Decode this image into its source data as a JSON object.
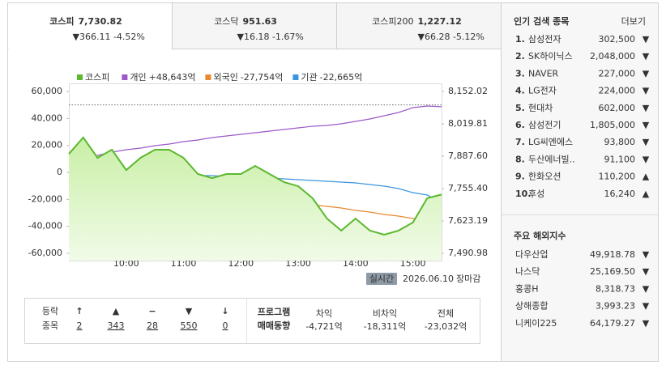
{
  "tabs": [
    {
      "name": "코스피",
      "value": "7,730.82",
      "change": "▼366.11 -4.52%"
    },
    {
      "name": "코스닥",
      "value": "951.63",
      "change": "▼16.18 -1.67%"
    },
    {
      "name": "코스피200",
      "value": "1,227.12",
      "change": "▼66.28 -5.12%"
    }
  ],
  "chart_data": {
    "type": "line",
    "x": [
      9,
      9.25,
      9.5,
      9.75,
      10,
      10.25,
      10.5,
      10.75,
      11,
      11.25,
      11.5,
      11.75,
      12,
      12.25,
      12.5,
      12.75,
      13,
      13.25,
      13.5,
      13.75,
      14,
      14.25,
      14.5,
      14.75,
      15,
      15.25,
      15.5
    ],
    "xlim": [
      9,
      15.5
    ],
    "xticks": [
      {
        "value": 10,
        "label": "10:00"
      },
      {
        "value": 11,
        "label": "11:00"
      },
      {
        "value": 12,
        "label": "12:00"
      },
      {
        "value": 13,
        "label": "13:00"
      },
      {
        "value": 14,
        "label": "14:00"
      },
      {
        "value": 15,
        "label": "15:00"
      }
    ],
    "ylim": [
      -60000,
      60000
    ],
    "yticks": [
      {
        "value": 60000,
        "label": "60,000"
      },
      {
        "value": 40000,
        "label": "40,000"
      },
      {
        "value": 20000,
        "label": "20,000"
      },
      0,
      {
        "value": -20000,
        "label": "-20,000"
      },
      {
        "value": -40000,
        "label": "-40,000"
      },
      {
        "value": -60000,
        "label": "-60,000"
      }
    ],
    "y2lim": [
      7490.98,
      8152.02
    ],
    "y2ticks": [
      {
        "value": 8152.02,
        "label": "8,152.02"
      },
      {
        "value": 8019.81,
        "label": "8,019.81"
      },
      {
        "value": 7887.6,
        "label": "7,887.60"
      },
      {
        "value": 7755.4,
        "label": "7,755.40"
      },
      {
        "value": 7623.19,
        "label": "7,623.19"
      },
      {
        "value": 7490.98,
        "label": "7,490.98"
      }
    ],
    "reference_line": 8096.93,
    "series": [
      {
        "name": "코스피",
        "color": "#5cb82e",
        "axis": "y2",
        "values": [
          7897,
          7964,
          7881,
          7914,
          7831,
          7881,
          7914,
          7914,
          7881,
          7815,
          7798,
          7815,
          7815,
          7848,
          7815,
          7782,
          7765,
          7716,
          7633,
          7584,
          7633,
          7584,
          7567,
          7584,
          7617,
          7716,
          7730.82
        ]
      },
      {
        "name": "개인",
        "legend_value": "+48,643억",
        "color": "#9b59c9",
        "values": [
          0,
          7800,
          12600,
          15000,
          16800,
          18000,
          19800,
          21000,
          22800,
          24000,
          25800,
          27000,
          28200,
          29400,
          30600,
          31800,
          33000,
          34200,
          34800,
          36000,
          37800,
          39600,
          42000,
          44400,
          48000,
          49200,
          48643
        ]
      },
      {
        "name": "외국인",
        "legend_value": "-27,754억",
        "color": "#e8892f",
        "values": [
          0,
          -5400,
          -9000,
          -11400,
          -13800,
          -15000,
          -16200,
          -17400,
          -18600,
          -19200,
          -19800,
          -20400,
          -21000,
          -21600,
          -22200,
          -22800,
          -23400,
          -24000,
          -25200,
          -26400,
          -28200,
          -29400,
          -31200,
          -32400,
          -34200,
          -33000,
          -27754
        ]
      },
      {
        "name": "기관",
        "legend_value": "-22,665억",
        "color": "#3a95e0",
        "values": [
          0,
          0,
          0,
          -600,
          -600,
          -1200,
          -1800,
          -1800,
          -2400,
          -2400,
          -2400,
          -3000,
          -3000,
          -3600,
          -4200,
          -4800,
          -5400,
          -6000,
          -6600,
          -7200,
          -7800,
          -9000,
          -10200,
          -12000,
          -15000,
          -16800,
          -22665
        ]
      }
    ]
  },
  "status": {
    "badge": "실시간",
    "date": "2026.06.10",
    "state": "장마감"
  },
  "breadth": {
    "label_lines": [
      "등락",
      "종목"
    ],
    "items": [
      {
        "symbol": "↑",
        "count": "2",
        "color": "#e0312f"
      },
      {
        "symbol": "▲",
        "count": "343",
        "color": "#e0312f"
      },
      {
        "symbol": "−",
        "count": "28",
        "color": "#777"
      },
      {
        "symbol": "▼",
        "count": "550",
        "color": "#1c5db5"
      },
      {
        "symbol": "↓",
        "count": "0",
        "color": "#1c5db5"
      }
    ]
  },
  "program": {
    "label_lines": [
      "프로그램",
      "매매동향"
    ],
    "items": [
      {
        "name": "차익",
        "value": "-4,721억"
      },
      {
        "name": "비차익",
        "value": "-18,311억"
      },
      {
        "name": "전체",
        "value": "-23,032억"
      }
    ]
  },
  "popular": {
    "title": "인기 검색 종목",
    "more": "더보기",
    "items": [
      {
        "rank": "1.",
        "name": "삼성전자",
        "price": "302,500",
        "dir": "▼"
      },
      {
        "rank": "2.",
        "name": "SK하이닉스",
        "price": "2,048,000",
        "dir": "▼"
      },
      {
        "rank": "3.",
        "name": "NAVER",
        "price": "227,000",
        "dir": "▼"
      },
      {
        "rank": "4.",
        "name": "LG전자",
        "price": "224,000",
        "dir": "▼"
      },
      {
        "rank": "5.",
        "name": "현대차",
        "price": "602,000",
        "dir": "▼"
      },
      {
        "rank": "6.",
        "name": "삼성전기",
        "price": "1,805,000",
        "dir": "▼"
      },
      {
        "rank": "7.",
        "name": "LG씨엔에스",
        "price": "93,800",
        "dir": "▼"
      },
      {
        "rank": "8.",
        "name": "두산에너빌..",
        "price": "91,100",
        "dir": "▼"
      },
      {
        "rank": "9.",
        "name": "한화오션",
        "price": "110,200",
        "dir": "▲"
      },
      {
        "rank": "10.",
        "name": "후성",
        "price": "16,240",
        "dir": "▲"
      }
    ]
  },
  "overseas": {
    "title": "주요 해외지수",
    "items": [
      {
        "name": "다우산업",
        "value": "49,918.78",
        "dir": "▼"
      },
      {
        "name": "나스닥",
        "value": "25,169.50",
        "dir": "▼"
      },
      {
        "name": "홍콩H",
        "value": "8,318.73",
        "dir": "▼"
      },
      {
        "name": "상해종합",
        "value": "3,993.23",
        "dir": "▼"
      },
      {
        "name": "니케이225",
        "value": "64,179.27",
        "dir": "▼"
      }
    ]
  }
}
